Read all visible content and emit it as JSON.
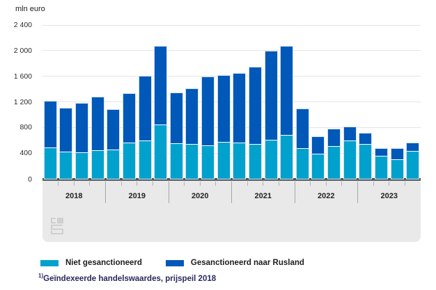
{
  "header": {
    "unit_label": "mln euro"
  },
  "y_axis": {
    "ticks": [
      {
        "value": 0,
        "label": "0"
      },
      {
        "value": 400,
        "label": "400"
      },
      {
        "value": 800,
        "label": "800"
      },
      {
        "value": 1200,
        "label": "1 200"
      },
      {
        "value": 1600,
        "label": "1 600"
      },
      {
        "value": 2000,
        "label": "2 000"
      },
      {
        "value": 2400,
        "label": "2 400"
      }
    ]
  },
  "chart_data": {
    "type": "bar",
    "stacked": true,
    "title": "",
    "ylabel": "mln euro",
    "ylim": [
      0,
      2400
    ],
    "grid": "horizontal",
    "legend_position": "bottom",
    "year_labels": [
      "2018",
      "2019",
      "2020",
      "2021",
      "2022",
      "2023"
    ],
    "quarters_per_year": 4,
    "series": [
      {
        "name": "Niet gesanctioneerd",
        "color": "#00a1cd",
        "values": [
          480,
          410,
          400,
          430,
          450,
          550,
          590,
          840,
          540,
          530,
          510,
          560,
          550,
          530,
          600,
          670,
          470,
          380,
          500,
          590,
          530,
          350,
          290,
          420
        ]
      },
      {
        "name": "Gesanctioneerd naar Rusland",
        "color": "#0058b8",
        "values": [
          720,
          670,
          760,
          820,
          620,
          760,
          1000,
          1220,
          780,
          860,
          1060,
          1030,
          1070,
          1190,
          1380,
          1380,
          610,
          260,
          260,
          210,
          160,
          110,
          160,
          120
        ]
      }
    ]
  },
  "legend": {
    "items": [
      {
        "label": "Niet gesanctioneerd",
        "color": "#00a1cd"
      },
      {
        "label": "Gesanctioneerd naar Rusland",
        "color": "#0058b8"
      }
    ]
  },
  "footnote": {
    "sup": "1)",
    "text": "Geïndexeerde handelswaardes, prijspeil 2018"
  },
  "colors": {
    "series_light": "#00a1cd",
    "series_dark": "#0058b8",
    "axis": "#59595b"
  }
}
